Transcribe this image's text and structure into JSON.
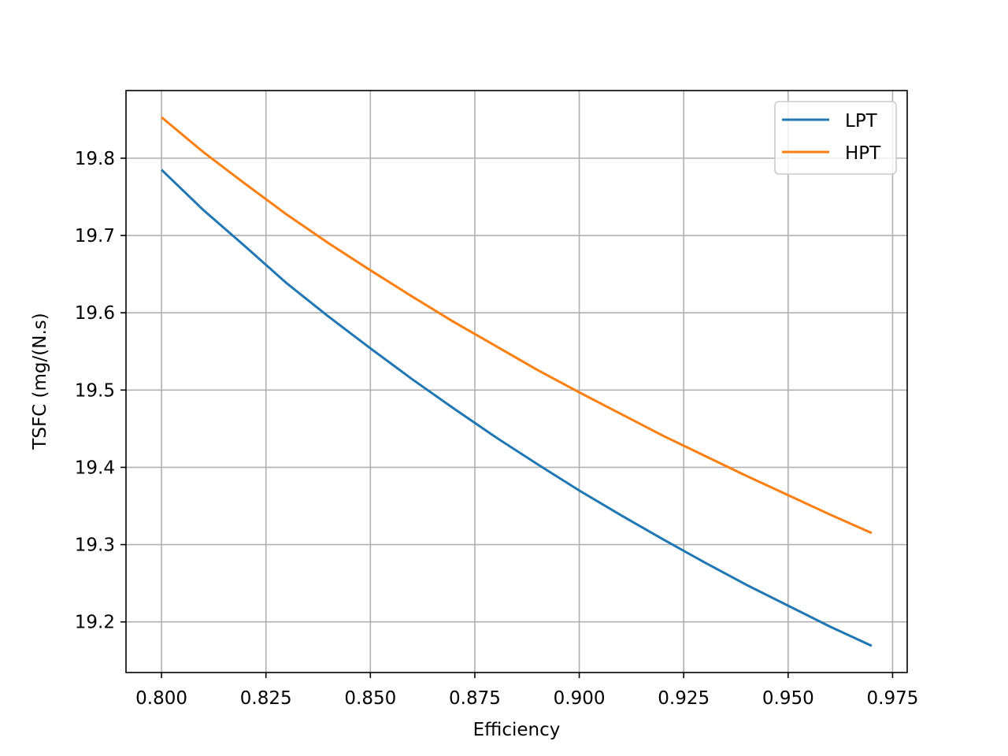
{
  "chart_data": {
    "type": "line",
    "title": "",
    "xlabel": "Efficiency",
    "ylabel": "TSFC (mg/(N.s)",
    "xlim": [
      0.7915,
      0.9785
    ],
    "ylim": [
      19.1345,
      19.8875
    ],
    "xticks": [
      0.8,
      0.825,
      0.85,
      0.875,
      0.9,
      0.925,
      0.95,
      0.975
    ],
    "xtick_labels": [
      "0.800",
      "0.825",
      "0.850",
      "0.875",
      "0.900",
      "0.925",
      "0.950",
      "0.975"
    ],
    "yticks": [
      19.2,
      19.3,
      19.4,
      19.5,
      19.6,
      19.7,
      19.8
    ],
    "ytick_labels": [
      "19.2",
      "19.3",
      "19.4",
      "19.5",
      "19.6",
      "19.7",
      "19.8"
    ],
    "grid": true,
    "legend_position": "top-right",
    "x": [
      0.8,
      0.81,
      0.82,
      0.83,
      0.84,
      0.85,
      0.86,
      0.87,
      0.88,
      0.89,
      0.9,
      0.91,
      0.92,
      0.93,
      0.94,
      0.95,
      0.96,
      0.97
    ],
    "series": [
      {
        "name": "LPT",
        "color": "#1f77b4",
        "values": [
          19.785,
          19.733,
          19.686,
          19.638,
          19.595,
          19.554,
          19.514,
          19.476,
          19.439,
          19.404,
          19.37,
          19.338,
          19.307,
          19.277,
          19.248,
          19.221,
          19.194,
          19.169
        ]
      },
      {
        "name": "HPT",
        "color": "#ff7f0e",
        "values": [
          19.853,
          19.808,
          19.767,
          19.727,
          19.69,
          19.655,
          19.621,
          19.588,
          19.557,
          19.526,
          19.497,
          19.469,
          19.441,
          19.415,
          19.389,
          19.364,
          19.339,
          19.315
        ]
      }
    ]
  }
}
